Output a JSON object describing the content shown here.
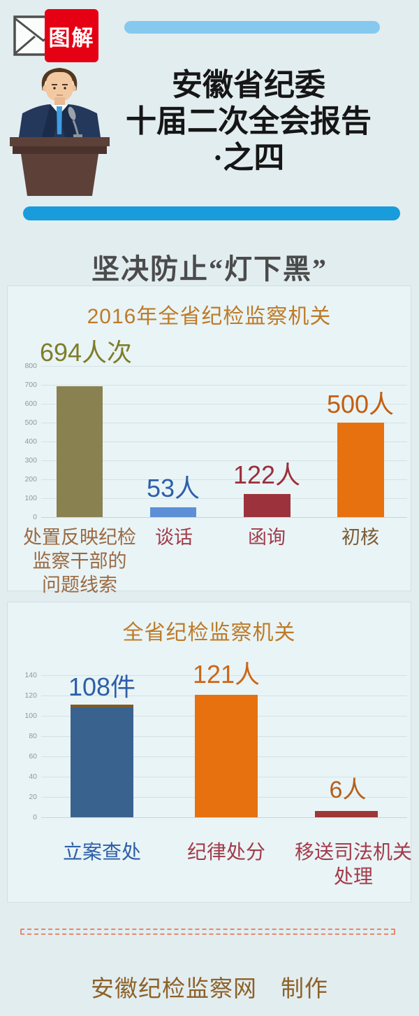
{
  "header": {
    "logo_badge_label": "图解",
    "title_lines": [
      "安徽省纪委",
      "十届二次全会报告",
      "·之四"
    ]
  },
  "section_title": "坚决防止“灯下黑”",
  "chart_data": [
    {
      "type": "bar",
      "title": "2016年全省纪检监察机关",
      "title_color": "#bd7b28",
      "categories": [
        "处置反映纪检监察干部的问题线索",
        "谈话",
        "函询",
        "初核"
      ],
      "categories_display": [
        [
          "处置反映纪检",
          "监察干部的",
          "问题线索"
        ],
        [
          "谈话"
        ],
        [
          "函询"
        ],
        [
          "初核"
        ]
      ],
      "values": [
        694,
        53,
        122,
        500
      ],
      "data_labels": [
        "694人次",
        "53人",
        "122人",
        "500人"
      ],
      "bar_colors": [
        "#8a8150",
        "#5d8fd6",
        "#9c333c",
        "#e6710e"
      ],
      "data_label_colors": [
        "#7f7d2a",
        "#2d5fa8",
        "#9b2f3a",
        "#c35e12"
      ],
      "category_colors": [
        "#9a6a42",
        "#a23b4a",
        "#a23b4a",
        "#7d5b35"
      ],
      "ylim": [
        0,
        800
      ],
      "yticks": [
        0,
        100,
        200,
        300,
        400,
        500,
        600,
        700,
        800
      ],
      "ytick_labels": [
        "800",
        "700",
        "600",
        "500",
        "400",
        "300",
        "200",
        "100",
        "0"
      ],
      "xlabel": "",
      "ylabel": "",
      "grid": true,
      "legend": "none"
    },
    {
      "type": "bar",
      "title": "全省纪检监察机关",
      "title_color": "#bd7b28",
      "categories": [
        "立案查处",
        "纪律处分",
        "移送司法机关处理"
      ],
      "categories_display": [
        [
          "立案查处"
        ],
        [
          "纪律处分"
        ],
        [
          "移送司法机关",
          "处理"
        ]
      ],
      "values": [
        108,
        121,
        6
      ],
      "data_labels": [
        "108件",
        "121人",
        "6人"
      ],
      "bar_colors": [
        "#3a628f",
        "#e6710e",
        "#9e3737"
      ],
      "bar1_cap_color": "#7d5c28",
      "data_label_colors": [
        "#2d5fa8",
        "#cb6717",
        "#b4601d"
      ],
      "category_colors": [
        "#2d5fa8",
        "#a23b4a",
        "#a23b4a"
      ],
      "ylim": [
        0,
        140
      ],
      "yticks": [
        0,
        20,
        40,
        60,
        80,
        100,
        120,
        140
      ],
      "ytick_labels": [
        "140",
        "120",
        "100",
        "80",
        "60",
        "40",
        "20",
        "0"
      ],
      "xlabel": "",
      "ylabel": "",
      "grid": true,
      "legend": "none"
    }
  ],
  "footer": {
    "credit": "安徽纪检监察网　制作"
  },
  "colors": {
    "page_bg": "#e2edf0",
    "panel_bg": "#e9f4f6",
    "badge_red": "#e60013",
    "pill_light_blue": "#85c9ef",
    "pill_dark_blue": "#189cdb",
    "title_text": "#161616",
    "section_title_text": "#4b4b4b",
    "footer_text": "#8d6127",
    "footer_dash": "#e8876a"
  }
}
